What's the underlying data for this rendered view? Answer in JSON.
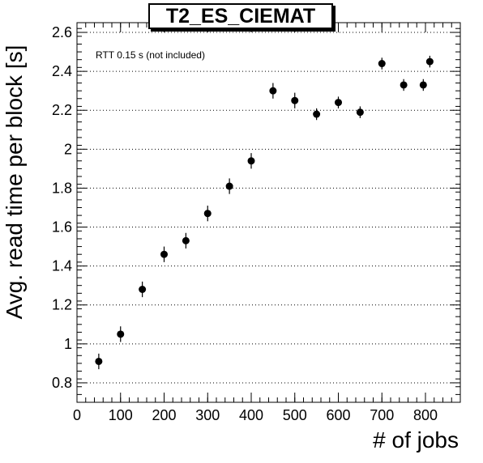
{
  "chart_data": {
    "type": "scatter",
    "title": "T2_ES_CIEMAT",
    "annotation": "RTT 0.15 s (not included)",
    "xlabel": "# of jobs",
    "ylabel": "Avg. read time per block [s]",
    "xlim": [
      0,
      880
    ],
    "ylim": [
      0.7,
      2.65
    ],
    "xticks": [
      0,
      100,
      200,
      300,
      400,
      500,
      600,
      700,
      800
    ],
    "yticks": [
      0.8,
      1,
      1.2,
      1.4,
      1.6,
      1.8,
      2,
      2.2,
      2.4,
      2.6
    ],
    "ytick_labels": [
      "0.8",
      "1",
      "1.2",
      "1.4",
      "1.6",
      "1.8",
      "2",
      "2.2",
      "2.4",
      "2.6"
    ],
    "grid": "horizontal dotted",
    "points": [
      {
        "x": 50,
        "y": 0.91,
        "err": 0.04
      },
      {
        "x": 100,
        "y": 1.05,
        "err": 0.04
      },
      {
        "x": 150,
        "y": 1.28,
        "err": 0.04
      },
      {
        "x": 200,
        "y": 1.46,
        "err": 0.04
      },
      {
        "x": 250,
        "y": 1.53,
        "err": 0.04
      },
      {
        "x": 300,
        "y": 1.67,
        "err": 0.04
      },
      {
        "x": 350,
        "y": 1.81,
        "err": 0.04
      },
      {
        "x": 400,
        "y": 1.94,
        "err": 0.04
      },
      {
        "x": 450,
        "y": 2.3,
        "err": 0.04
      },
      {
        "x": 500,
        "y": 2.25,
        "err": 0.04
      },
      {
        "x": 550,
        "y": 2.18,
        "err": 0.03
      },
      {
        "x": 600,
        "y": 2.24,
        "err": 0.03
      },
      {
        "x": 650,
        "y": 2.19,
        "err": 0.03
      },
      {
        "x": 700,
        "y": 2.44,
        "err": 0.03
      },
      {
        "x": 750,
        "y": 2.33,
        "err": 0.03
      },
      {
        "x": 795,
        "y": 2.33,
        "err": 0.03
      },
      {
        "x": 810,
        "y": 2.45,
        "err": 0.03
      }
    ]
  }
}
